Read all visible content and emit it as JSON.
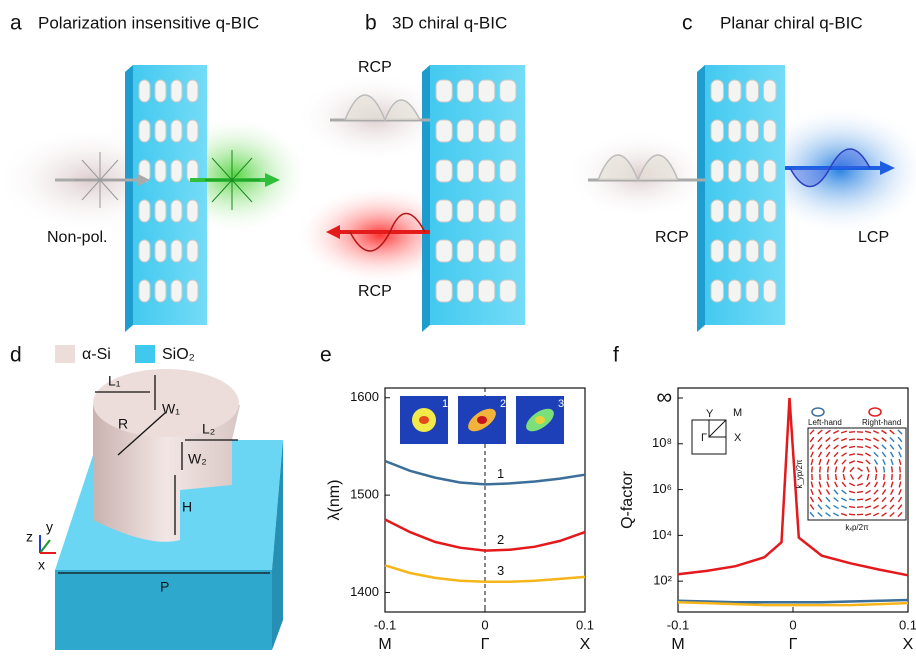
{
  "panels": {
    "a": {
      "letter": "a",
      "title": "Polarization insensitive q-BIC",
      "input_label": "Non-pol."
    },
    "b": {
      "letter": "b",
      "title": "3D chiral q-BIC",
      "top_label": "RCP",
      "bottom_label": "RCP"
    },
    "c": {
      "letter": "c",
      "title": "Planar chiral  q-BIC",
      "input_label": "RCP",
      "output_label": "LCP"
    },
    "d": {
      "letter": "d",
      "legend": [
        "α-Si",
        "SiO₂"
      ],
      "dimensions": [
        "L₁",
        "W₁",
        "L₂",
        "W₂",
        "R",
        "H",
        "P"
      ],
      "axes": [
        "z",
        "y",
        "x"
      ]
    }
  },
  "chart_data": [
    {
      "type": "line",
      "panel_letter": "e",
      "ylabel": "λ(nm)",
      "x": [
        -0.1,
        -0.075,
        -0.05,
        -0.025,
        0,
        0.025,
        0.05,
        0.075,
        0.1
      ],
      "xlim": [
        -0.1,
        0.1
      ],
      "xticks": [
        -0.1,
        0,
        0.1
      ],
      "xtick_symbols": [
        "M",
        "Γ",
        "X"
      ],
      "ylim": [
        1380,
        1610
      ],
      "yticks": [
        1400,
        1500,
        1600
      ],
      "series": [
        {
          "name": "1",
          "color": "#3b6e98",
          "values": [
            1535,
            1525,
            1518,
            1513,
            1511,
            1512,
            1514,
            1517,
            1521
          ]
        },
        {
          "name": "2",
          "color": "#e3191c",
          "values": [
            1475,
            1462,
            1452,
            1446,
            1443,
            1444,
            1447,
            1453,
            1462
          ]
        },
        {
          "name": "3",
          "color": "#f5b51b",
          "values": [
            1428,
            1420,
            1415,
            1412,
            1411,
            1411,
            1412,
            1414,
            1416
          ]
        }
      ],
      "inset_labels": [
        "1",
        "2",
        "3"
      ]
    },
    {
      "type": "line",
      "panel_letter": "f",
      "ylabel": "Q-factor",
      "log_scale": true,
      "x": [
        -0.1,
        -0.075,
        -0.05,
        -0.025,
        -0.01,
        -0.003,
        0.005,
        0.025,
        0.05,
        0.075,
        0.1
      ],
      "xlim": [
        -0.1,
        0.1
      ],
      "xticks": [
        -0.1,
        0,
        0.1
      ],
      "xtick_symbols": [
        "M",
        "Γ",
        "X"
      ],
      "ylim": [
        4.5,
        10000000000
      ],
      "yticks": [
        {
          "value": 100,
          "label": "10²"
        },
        {
          "value": 10000,
          "label": "10⁴"
        },
        {
          "value": 1000000,
          "label": "10⁶"
        },
        {
          "value": 100000000,
          "label": "10⁸"
        },
        {
          "value": 10000000000,
          "label": "∞"
        }
      ],
      "series": [
        {
          "color": "#e3191c",
          "values": [
            200,
            280,
            450,
            1100,
            5000,
            10000000000,
            8000,
            1300,
            600,
            320,
            180
          ]
        },
        {
          "color": "#3b6e98",
          "values": [
            14,
            13,
            12,
            12,
            12,
            12,
            12,
            12,
            13,
            14,
            15
          ]
        },
        {
          "color": "#f5b51b",
          "values": [
            12,
            11,
            10,
            9,
            9,
            9,
            9,
            9,
            9,
            10,
            11
          ]
        }
      ],
      "inset": {
        "brillouin_labels": [
          "Y",
          "M",
          "Γ",
          "X"
        ],
        "legend": [
          "Left-hand",
          "Right-hand"
        ],
        "xlabel": "kₓp/2π",
        "ylabel": "k_yp/2π"
      }
    }
  ]
}
